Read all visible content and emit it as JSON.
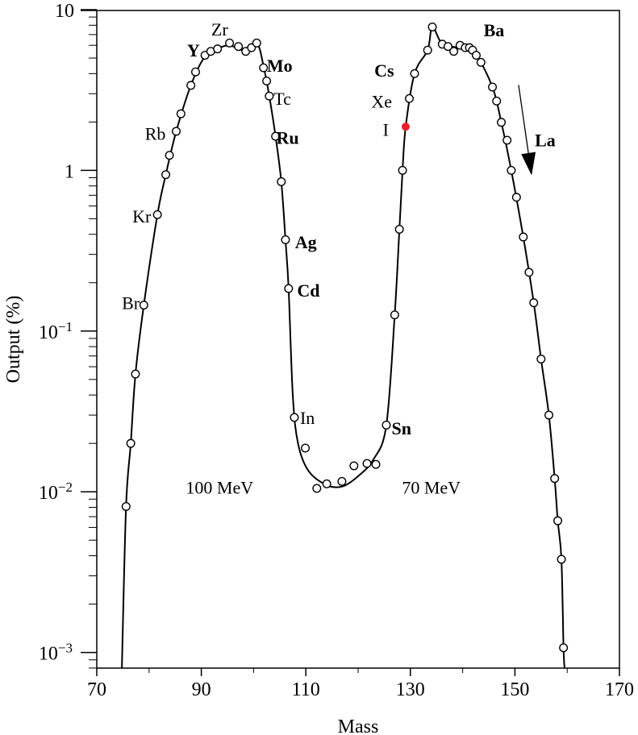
{
  "chart_data": {
    "type": "scatter",
    "xlabel": "Mass",
    "ylabel": "Output (%)",
    "xlim": [
      70,
      170
    ],
    "ylim": [
      0.0008,
      10
    ],
    "yscale": "log",
    "grid": false,
    "xticks": [
      70,
      90,
      110,
      130,
      150,
      170
    ],
    "xtick_labels": [
      "70",
      "90",
      "110",
      "130",
      "150",
      "170"
    ],
    "yticks": [
      10,
      1,
      0.1,
      0.01,
      0.001
    ],
    "ytick_labels": [
      {
        "base": "10",
        "exp": ""
      },
      {
        "base": "1",
        "exp": ""
      },
      {
        "base": "10",
        "exp": "−1"
      },
      {
        "base": "10",
        "exp": "−2"
      },
      {
        "base": "10",
        "exp": "−3"
      }
    ],
    "series": [
      {
        "marker": "open-circle",
        "points": [
          [
            75.6,
            0.0081
          ],
          [
            76.5,
            0.02
          ],
          [
            77.4,
            0.054
          ],
          [
            79.0,
            0.145
          ],
          [
            81.6,
            0.53
          ],
          [
            83.2,
            0.94
          ],
          [
            83.9,
            1.24
          ],
          [
            85.2,
            1.75
          ],
          [
            86.1,
            2.25
          ],
          [
            88.0,
            3.38
          ],
          [
            88.9,
            4.1
          ],
          [
            90.7,
            5.2
          ],
          [
            91.8,
            5.5
          ],
          [
            93.1,
            5.7
          ],
          [
            95.4,
            6.2
          ],
          [
            97.1,
            5.9
          ],
          [
            98.5,
            5.5
          ],
          [
            99.6,
            5.8
          ],
          [
            100.6,
            6.2
          ],
          [
            101.9,
            4.35
          ],
          [
            102.5,
            3.6
          ],
          [
            103.0,
            2.9
          ],
          [
            104.2,
            1.63
          ],
          [
            105.3,
            0.85
          ],
          [
            106.1,
            0.37
          ],
          [
            106.7,
            0.184
          ],
          [
            107.8,
            0.029
          ],
          [
            109.9,
            0.0187
          ],
          [
            112.1,
            0.0105
          ],
          [
            114.0,
            0.0112
          ],
          [
            116.9,
            0.0116
          ],
          [
            119.2,
            0.0145
          ],
          [
            121.7,
            0.015
          ],
          [
            123.4,
            0.0148
          ],
          [
            125.4,
            0.026
          ],
          [
            127.0,
            0.126
          ],
          [
            127.9,
            0.43
          ],
          [
            128.5,
            1.0
          ],
          [
            129.8,
            2.8
          ],
          [
            130.8,
            4.0
          ],
          [
            133.3,
            5.6
          ],
          [
            134.2,
            7.8
          ],
          [
            136.1,
            6.1
          ],
          [
            137.2,
            5.9
          ],
          [
            138.3,
            5.5
          ],
          [
            139.5,
            6.0
          ],
          [
            140.5,
            5.8
          ],
          [
            141.3,
            5.8
          ],
          [
            141.9,
            5.6
          ],
          [
            142.6,
            5.2
          ],
          [
            143.5,
            4.7
          ],
          [
            145.7,
            3.3
          ],
          [
            146.5,
            2.7
          ],
          [
            147.4,
            1.99
          ],
          [
            148.5,
            1.54
          ],
          [
            149.3,
            1.0
          ],
          [
            150.3,
            0.68
          ],
          [
            151.6,
            0.385
          ],
          [
            152.7,
            0.232
          ],
          [
            153.6,
            0.15
          ],
          [
            155.0,
            0.067
          ],
          [
            156.5,
            0.03
          ],
          [
            157.6,
            0.0121
          ],
          [
            158.2,
            0.0066
          ],
          [
            158.9,
            0.0038
          ],
          [
            159.3,
            0.00107
          ]
        ]
      },
      {
        "marker": "filled-circle",
        "color": "#e8202a",
        "points": [
          [
            129.1,
            1.87
          ]
        ]
      },
      {
        "marker": "line",
        "color": "#000000",
        "points": [
          [
            74.8,
            0.0008
          ],
          [
            75.6,
            0.0081
          ],
          [
            76.5,
            0.02
          ],
          [
            77.4,
            0.054
          ],
          [
            79,
            0.145
          ],
          [
            81.6,
            0.53
          ],
          [
            83.2,
            0.94
          ],
          [
            85.2,
            1.75
          ],
          [
            88,
            3.38
          ],
          [
            90.5,
            5.0
          ],
          [
            93,
            5.7
          ],
          [
            95.4,
            6.0
          ],
          [
            98,
            5.6
          ],
          [
            100.6,
            6.2
          ],
          [
            102,
            4.3
          ],
          [
            103,
            2.9
          ],
          [
            104.2,
            1.63
          ],
          [
            105.3,
            0.85
          ],
          [
            106.1,
            0.37
          ],
          [
            106.7,
            0.184
          ],
          [
            107.5,
            0.04
          ],
          [
            108.5,
            0.02
          ],
          [
            110.5,
            0.0135
          ],
          [
            114,
            0.011
          ],
          [
            117,
            0.0108
          ],
          [
            120,
            0.0125
          ],
          [
            123,
            0.016
          ],
          [
            125.4,
            0.026
          ],
          [
            127,
            0.126
          ],
          [
            127.9,
            0.43
          ],
          [
            128.5,
            1.0
          ],
          [
            129.1,
            1.87
          ],
          [
            130.8,
            4.0
          ],
          [
            133.3,
            5.6
          ],
          [
            134.2,
            7.8
          ],
          [
            136.1,
            6.1
          ],
          [
            139,
            5.8
          ],
          [
            142.5,
            5.2
          ],
          [
            145.7,
            3.3
          ],
          [
            147.4,
            1.99
          ],
          [
            149.3,
            1.0
          ],
          [
            151.6,
            0.385
          ],
          [
            153.6,
            0.15
          ],
          [
            155,
            0.067
          ],
          [
            156.5,
            0.03
          ],
          [
            157.6,
            0.0121
          ],
          [
            158.2,
            0.0066
          ],
          [
            158.9,
            0.0038
          ],
          [
            159.3,
            0.00107
          ],
          [
            159.5,
            0.0008
          ]
        ]
      }
    ],
    "annotations": [
      {
        "text": "Zr",
        "x": 93.5,
        "y": 7.6,
        "bold": false,
        "color": "#000000"
      },
      {
        "text": "Y",
        "x": 88.5,
        "y": 5.6,
        "bold": true,
        "color": "#000000"
      },
      {
        "text": "Mo",
        "x": 105.0,
        "y": 4.5,
        "bold": true,
        "color": "#000000"
      },
      {
        "text": "Tc",
        "x": 105.5,
        "y": 2.8,
        "bold": false,
        "color": "#000000"
      },
      {
        "text": "Ru",
        "x": 106.5,
        "y": 1.6,
        "bold": true,
        "color": "#000000"
      },
      {
        "text": "Rb",
        "x": 81.2,
        "y": 1.7,
        "bold": false,
        "color": "#000000"
      },
      {
        "text": "Kr",
        "x": 78.6,
        "y": 0.52,
        "bold": false,
        "color": "#000000"
      },
      {
        "text": "Ag",
        "x": 110.0,
        "y": 0.36,
        "bold": true,
        "color": "#000000"
      },
      {
        "text": "Cd",
        "x": 110.5,
        "y": 0.18,
        "bold": true,
        "color": "#000000"
      },
      {
        "text": "Br",
        "x": 76.5,
        "y": 0.15,
        "bold": false,
        "color": "#000000"
      },
      {
        "text": "In",
        "x": 110.3,
        "y": 0.029,
        "bold": false,
        "color": "#000000"
      },
      {
        "text": "Sn",
        "x": 128.3,
        "y": 0.025,
        "bold": true,
        "color": "#000000"
      },
      {
        "text": "100 MeV",
        "x": 93.5,
        "y": 0.0107,
        "bold": false,
        "color": "#000000"
      },
      {
        "text": "70 MeV",
        "x": 134.0,
        "y": 0.0107,
        "bold": false,
        "color": "#000000"
      },
      {
        "text": "Cs",
        "x": 125.0,
        "y": 4.2,
        "bold": true,
        "color": "#000000"
      },
      {
        "text": "Xe",
        "x": 124.5,
        "y": 2.7,
        "bold": false,
        "color": "#000000"
      },
      {
        "text": "I",
        "x": 125.3,
        "y": 1.8,
        "bold": false,
        "color": "#e8202a"
      },
      {
        "text": "Ba",
        "x": 146.0,
        "y": 7.5,
        "bold": true,
        "color": "#000000"
      },
      {
        "text": "La",
        "x": 155.8,
        "y": 1.55,
        "bold": true,
        "color": "#000000"
      }
    ],
    "arrow": {
      "from": [
        150.7,
        3.4
      ],
      "to": [
        153.2,
        0.93
      ],
      "color": "#000000"
    }
  }
}
